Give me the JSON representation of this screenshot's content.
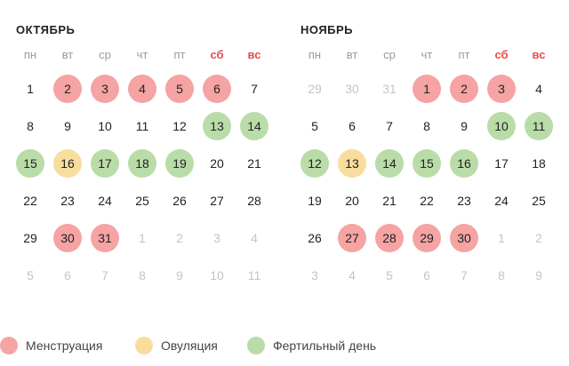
{
  "colors": {
    "menstruation": "#f5a3a3",
    "ovulation": "#f8dd9c",
    "fertile": "#b9dca8",
    "weekend_label": "#e84d4d",
    "outside_day": "#c4c4c4"
  },
  "weekdays": [
    "пн",
    "вт",
    "ср",
    "чт",
    "пт",
    "сб",
    "вс"
  ],
  "months": [
    {
      "title": "ОКТЯБРЬ",
      "weeks": [
        [
          {
            "d": "1"
          },
          {
            "d": "2",
            "t": "m"
          },
          {
            "d": "3",
            "t": "m"
          },
          {
            "d": "4",
            "t": "m"
          },
          {
            "d": "5",
            "t": "m"
          },
          {
            "d": "6",
            "t": "m"
          },
          {
            "d": "7"
          }
        ],
        [
          {
            "d": "8"
          },
          {
            "d": "9"
          },
          {
            "d": "10"
          },
          {
            "d": "11"
          },
          {
            "d": "12"
          },
          {
            "d": "13",
            "t": "f"
          },
          {
            "d": "14",
            "t": "f"
          }
        ],
        [
          {
            "d": "15",
            "t": "f"
          },
          {
            "d": "16",
            "t": "o"
          },
          {
            "d": "17",
            "t": "f"
          },
          {
            "d": "18",
            "t": "f"
          },
          {
            "d": "19",
            "t": "f"
          },
          {
            "d": "20"
          },
          {
            "d": "21"
          }
        ],
        [
          {
            "d": "22"
          },
          {
            "d": "23"
          },
          {
            "d": "24"
          },
          {
            "d": "25"
          },
          {
            "d": "26"
          },
          {
            "d": "27"
          },
          {
            "d": "28"
          }
        ],
        [
          {
            "d": "29"
          },
          {
            "d": "30",
            "t": "m"
          },
          {
            "d": "31",
            "t": "m"
          },
          {
            "d": "1",
            "out": true
          },
          {
            "d": "2",
            "out": true
          },
          {
            "d": "3",
            "out": true
          },
          {
            "d": "4",
            "out": true
          }
        ],
        [
          {
            "d": "5",
            "out": true
          },
          {
            "d": "6",
            "out": true
          },
          {
            "d": "7",
            "out": true
          },
          {
            "d": "8",
            "out": true
          },
          {
            "d": "9",
            "out": true
          },
          {
            "d": "10",
            "out": true
          },
          {
            "d": "11",
            "out": true
          }
        ]
      ]
    },
    {
      "title": "НОЯБРЬ",
      "weeks": [
        [
          {
            "d": "29",
            "out": true
          },
          {
            "d": "30",
            "out": true
          },
          {
            "d": "31",
            "out": true
          },
          {
            "d": "1",
            "t": "m"
          },
          {
            "d": "2",
            "t": "m"
          },
          {
            "d": "3",
            "t": "m"
          },
          {
            "d": "4"
          }
        ],
        [
          {
            "d": "5"
          },
          {
            "d": "6"
          },
          {
            "d": "7"
          },
          {
            "d": "8"
          },
          {
            "d": "9"
          },
          {
            "d": "10",
            "t": "f"
          },
          {
            "d": "11",
            "t": "f"
          }
        ],
        [
          {
            "d": "12",
            "t": "f"
          },
          {
            "d": "13",
            "t": "o"
          },
          {
            "d": "14",
            "t": "f"
          },
          {
            "d": "15",
            "t": "f"
          },
          {
            "d": "16",
            "t": "f"
          },
          {
            "d": "17"
          },
          {
            "d": "18"
          }
        ],
        [
          {
            "d": "19"
          },
          {
            "d": "20"
          },
          {
            "d": "21"
          },
          {
            "d": "22"
          },
          {
            "d": "23"
          },
          {
            "d": "24"
          },
          {
            "d": "25"
          }
        ],
        [
          {
            "d": "26"
          },
          {
            "d": "27",
            "t": "m"
          },
          {
            "d": "28",
            "t": "m"
          },
          {
            "d": "29",
            "t": "m"
          },
          {
            "d": "30",
            "t": "m"
          },
          {
            "d": "1",
            "out": true
          },
          {
            "d": "2",
            "out": true
          }
        ],
        [
          {
            "d": "3",
            "out": true
          },
          {
            "d": "4",
            "out": true
          },
          {
            "d": "5",
            "out": true
          },
          {
            "d": "6",
            "out": true
          },
          {
            "d": "7",
            "out": true
          },
          {
            "d": "8",
            "out": true
          },
          {
            "d": "9",
            "out": true
          }
        ]
      ]
    }
  ],
  "legend": [
    {
      "key": "menstruation",
      "label": "Менструация"
    },
    {
      "key": "ovulation",
      "label": "Овуляция"
    },
    {
      "key": "fertile",
      "label": "Фертильный день"
    }
  ]
}
